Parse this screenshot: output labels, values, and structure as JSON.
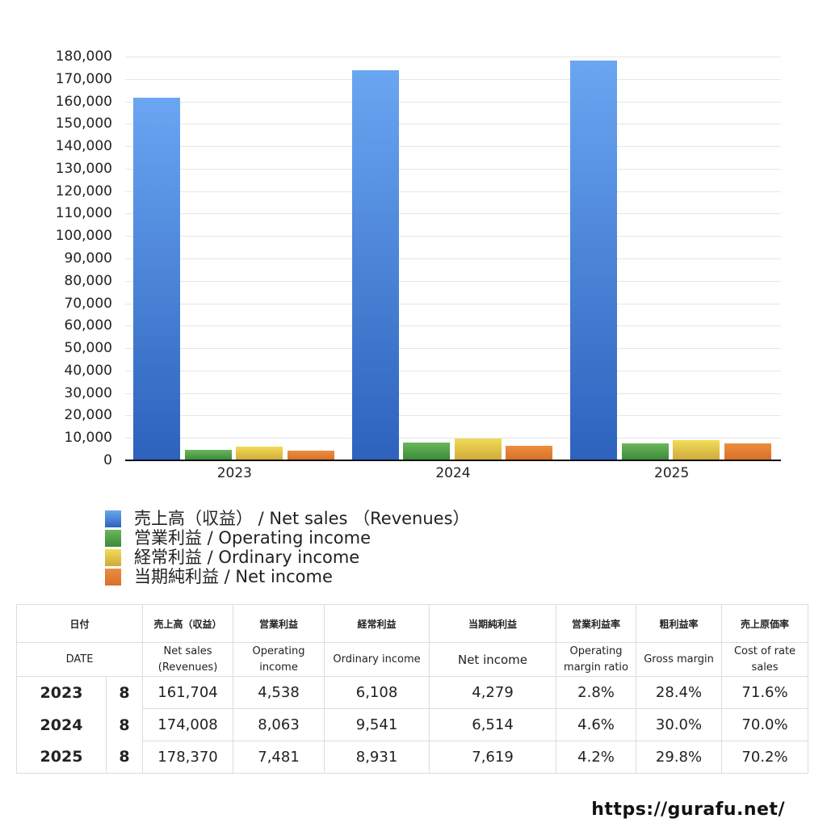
{
  "chart_data": {
    "type": "bar",
    "title": "",
    "xlabel": "",
    "ylabel": "",
    "categories": [
      "2023",
      "2024",
      "2025"
    ],
    "series": [
      {
        "name": "売上高（収益） / Net sales （Revenues）",
        "color": "#4a86dc",
        "values": [
          161704,
          174008,
          178370
        ]
      },
      {
        "name": "営業利益 / Operating income",
        "color": "#4e9e45",
        "values": [
          4538,
          8063,
          7481
        ]
      },
      {
        "name": "経常利益 / Ordinary income",
        "color": "#e2c442",
        "values": [
          6108,
          9541,
          8931
        ]
      },
      {
        "name": "当期純利益 / Net income",
        "color": "#e07b35",
        "values": [
          4279,
          6514,
          7619
        ]
      }
    ],
    "ylim": [
      0,
      180000
    ],
    "yticks": [
      "0",
      "10,000",
      "20,000",
      "30,000",
      "40,000",
      "50,000",
      "60,000",
      "70,000",
      "80,000",
      "90,000",
      "100,000",
      "110,000",
      "120,000",
      "130,000",
      "140,000",
      "150,000",
      "160,000",
      "170,000",
      "180,000"
    ],
    "grid": true,
    "legend_position": "bottom-left"
  },
  "legend": [
    {
      "label": "売上高（収益） / Net sales （Revenues）",
      "color_top": "#6aa6f2",
      "color_bottom": "#2d62bd"
    },
    {
      "label": "営業利益 / Operating income",
      "color_top": "#6ab65a",
      "color_bottom": "#3a8a38"
    },
    {
      "label": "経常利益 / Ordinary income",
      "color_top": "#f1dc57",
      "color_bottom": "#cfa93c"
    },
    {
      "label": "当期純利益 / Net income",
      "color_top": "#ec8e3e",
      "color_bottom": "#d76f2a"
    }
  ],
  "table": {
    "header_jp": [
      "日付",
      "売上高（収益）",
      "営業利益",
      "経常利益",
      "当期純利益",
      "営業利益率",
      "粗利益率",
      "売上原価率"
    ],
    "header_en": [
      "DATE",
      "Net sales\n(Revenues)",
      "Operating\nincome",
      "Ordinary income",
      "Net income",
      "Operating\nmargin ratio",
      "Gross margin",
      "Cost of rate\nsales"
    ],
    "rows": [
      {
        "year": "2023",
        "month": "8",
        "net_sales": "161,704",
        "operating_income": "4,538",
        "ordinary_income": "6,108",
        "net_income": "4,279",
        "operating_margin": "2.8%",
        "gross_margin": "28.4%",
        "cost_rate": "71.6%"
      },
      {
        "year": "2024",
        "month": "8",
        "net_sales": "174,008",
        "operating_income": "8,063",
        "ordinary_income": "9,541",
        "net_income": "6,514",
        "operating_margin": "4.6%",
        "gross_margin": "30.0%",
        "cost_rate": "70.0%"
      },
      {
        "year": "2025",
        "month": "8",
        "net_sales": "178,370",
        "operating_income": "7,481",
        "ordinary_income": "8,931",
        "net_income": "7,619",
        "operating_margin": "4.2%",
        "gross_margin": "29.8%",
        "cost_rate": "70.2%"
      }
    ]
  },
  "footer": {
    "url": "https://gurafu.net/"
  }
}
